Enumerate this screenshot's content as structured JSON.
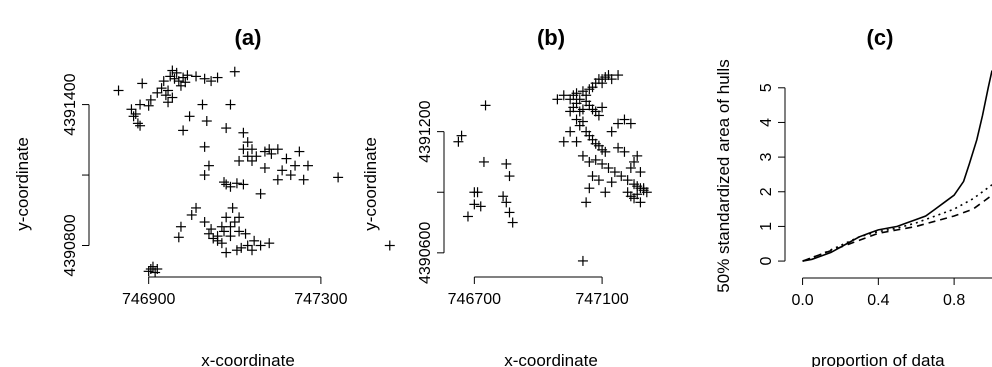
{
  "chart_data": [
    {
      "panel": "(a)",
      "type": "scatter",
      "title": "(a)",
      "xlabel": "x-coordinate",
      "ylabel": "y-coordinate",
      "xlim": [
        746780,
        747500
      ],
      "ylim": [
        4390700,
        4391560
      ],
      "xticks": [
        746900,
        747300
      ],
      "xtick_labels": [
        "746900",
        "747300"
      ],
      "yticks": [
        4390800,
        4391100,
        4391400
      ],
      "ytick_labels": [
        "4390800",
        "",
        "4391400"
      ],
      "grid": false,
      "marker": "+",
      "points": [
        [
          746830,
          4391460
        ],
        [
          746860,
          4391380
        ],
        [
          746865,
          4391350
        ],
        [
          746870,
          4391360
        ],
        [
          746875,
          4391320
        ],
        [
          746880,
          4391400
        ],
        [
          746880,
          4391310
        ],
        [
          746885,
          4391490
        ],
        [
          746900,
          4391395
        ],
        [
          746905,
          4391420
        ],
        [
          746920,
          4391450
        ],
        [
          746930,
          4391470
        ],
        [
          746935,
          4391500
        ],
        [
          746940,
          4391440
        ],
        [
          746945,
          4391460
        ],
        [
          746950,
          4391520
        ],
        [
          746955,
          4391545
        ],
        [
          746960,
          4391510
        ],
        [
          746965,
          4391535
        ],
        [
          746970,
          4391500
        ],
        [
          746975,
          4391480
        ],
        [
          746980,
          4391515
        ],
        [
          746985,
          4391495
        ],
        [
          746990,
          4391525
        ],
        [
          746945,
          4391410
        ],
        [
          746955,
          4391430
        ],
        [
          747010,
          4391520
        ],
        [
          747030,
          4391510
        ],
        [
          747045,
          4391500
        ],
        [
          747060,
          4391515
        ],
        [
          747100,
          4391540
        ],
        [
          747025,
          4391400
        ],
        [
          747035,
          4391330
        ],
        [
          746995,
          4391350
        ],
        [
          746980,
          4391290
        ],
        [
          747030,
          4391220
        ],
        [
          747080,
          4391300
        ],
        [
          747090,
          4391400
        ],
        [
          747120,
          4391280
        ],
        [
          747130,
          4391240
        ],
        [
          747120,
          4391210
        ],
        [
          747150,
          4391180
        ],
        [
          747140,
          4391160
        ],
        [
          747170,
          4391200
        ],
        [
          747180,
          4391210
        ],
        [
          747185,
          4391190
        ],
        [
          747200,
          4391210
        ],
        [
          747210,
          4391120
        ],
        [
          747220,
          4391170
        ],
        [
          747240,
          4391140
        ],
        [
          747250,
          4391200
        ],
        [
          747270,
          4391140
        ],
        [
          747230,
          4391100
        ],
        [
          747260,
          4391080
        ],
        [
          747200,
          4391080
        ],
        [
          747170,
          4391130
        ],
        [
          747160,
          4391020
        ],
        [
          747130,
          4391180
        ],
        [
          747140,
          4391210
        ],
        [
          747110,
          4391160
        ],
        [
          747075,
          4391070
        ],
        [
          747080,
          4391060
        ],
        [
          747090,
          4391050
        ],
        [
          747105,
          4391065
        ],
        [
          747120,
          4391060
        ],
        [
          747040,
          4391140
        ],
        [
          747030,
          4391100
        ],
        [
          747340,
          4391090
        ],
        [
          746975,
          4390880
        ],
        [
          746970,
          4390835
        ],
        [
          747000,
          4390930
        ],
        [
          747010,
          4390960
        ],
        [
          747030,
          4390900
        ],
        [
          747045,
          4390870
        ],
        [
          747060,
          4390840
        ],
        [
          747075,
          4390860
        ],
        [
          747090,
          4390880
        ],
        [
          747100,
          4390900
        ],
        [
          747110,
          4390920
        ],
        [
          747095,
          4390960
        ],
        [
          747080,
          4390920
        ],
        [
          747070,
          4390880
        ],
        [
          747050,
          4390830
        ],
        [
          747060,
          4390820
        ],
        [
          747070,
          4390810
        ],
        [
          747090,
          4390840
        ],
        [
          747110,
          4390860
        ],
        [
          747130,
          4390800
        ],
        [
          747115,
          4390790
        ],
        [
          747105,
          4390780
        ],
        [
          747080,
          4390770
        ],
        [
          747040,
          4390850
        ],
        [
          747125,
          4390850
        ],
        [
          747145,
          4390820
        ],
        [
          747160,
          4390800
        ],
        [
          747180,
          4390810
        ],
        [
          747140,
          4390780
        ],
        [
          746900,
          4390690
        ],
        [
          746905,
          4390700
        ],
        [
          746910,
          4390710
        ],
        [
          746915,
          4390685
        ],
        [
          746920,
          4390700
        ],
        [
          747460,
          4390800
        ]
      ]
    },
    {
      "panel": "(b)",
      "type": "scatter",
      "title": "(b)",
      "xlabel": "x-coordinate",
      "ylabel": "y-coordinate",
      "xlim": [
        746630,
        747250
      ],
      "ylim": [
        4390520,
        4391520
      ],
      "xticks": [
        746700,
        747100
      ],
      "xtick_labels": [
        "746700",
        "747100"
      ],
      "yticks": [
        4390600,
        4390900,
        4391200
      ],
      "ytick_labels": [
        "4390600",
        "",
        "4391200"
      ],
      "grid": false,
      "marker": "+",
      "points": [
        [
          746650,
          4391150
        ],
        [
          746660,
          4391180
        ],
        [
          746700,
          4390900
        ],
        [
          746710,
          4390900
        ],
        [
          746720,
          4390830
        ],
        [
          746700,
          4390840
        ],
        [
          746730,
          4391050
        ],
        [
          746735,
          4391330
        ],
        [
          746800,
          4391040
        ],
        [
          746810,
          4390980
        ],
        [
          746790,
          4390880
        ],
        [
          746800,
          4390850
        ],
        [
          746810,
          4390800
        ],
        [
          746680,
          4390780
        ],
        [
          746820,
          4390750
        ],
        [
          746960,
          4391360
        ],
        [
          746980,
          4391380
        ],
        [
          747000,
          4391360
        ],
        [
          747010,
          4391380
        ],
        [
          747020,
          4391390
        ],
        [
          747030,
          4391360
        ],
        [
          747040,
          4391400
        ],
        [
          747050,
          4391380
        ],
        [
          747060,
          4391410
        ],
        [
          747070,
          4391420
        ],
        [
          747080,
          4391440
        ],
        [
          747090,
          4391460
        ],
        [
          747100,
          4391440
        ],
        [
          747110,
          4391470
        ],
        [
          747120,
          4391480
        ],
        [
          747130,
          4391460
        ],
        [
          747000,
          4391300
        ],
        [
          747010,
          4391320
        ],
        [
          747020,
          4391340
        ],
        [
          747030,
          4391300
        ],
        [
          747040,
          4391310
        ],
        [
          747050,
          4391350
        ],
        [
          747060,
          4391330
        ],
        [
          747070,
          4391310
        ],
        [
          747080,
          4391300
        ],
        [
          747090,
          4391280
        ],
        [
          747100,
          4391320
        ],
        [
          747020,
          4391260
        ],
        [
          747030,
          4391230
        ],
        [
          747040,
          4391250
        ],
        [
          747050,
          4391200
        ],
        [
          747060,
          4391180
        ],
        [
          747070,
          4391160
        ],
        [
          747080,
          4391140
        ],
        [
          747090,
          4391130
        ],
        [
          747100,
          4391110
        ],
        [
          747110,
          4391100
        ],
        [
          746980,
          4391150
        ],
        [
          747000,
          4391200
        ],
        [
          747020,
          4391150
        ],
        [
          747040,
          4391080
        ],
        [
          747060,
          4391050
        ],
        [
          747080,
          4391060
        ],
        [
          747100,
          4391040
        ],
        [
          747120,
          4391020
        ],
        [
          747140,
          4391000
        ],
        [
          747160,
          4390980
        ],
        [
          747180,
          4390960
        ],
        [
          747200,
          4390940
        ],
        [
          747220,
          4390920
        ],
        [
          747230,
          4390910
        ],
        [
          747210,
          4390930
        ],
        [
          747190,
          4391020
        ],
        [
          747200,
          4391050
        ],
        [
          747170,
          4391100
        ],
        [
          747150,
          4391120
        ],
        [
          747130,
          4391200
        ],
        [
          747150,
          4391240
        ],
        [
          747170,
          4391260
        ],
        [
          747190,
          4391240
        ],
        [
          747210,
          4391080
        ],
        [
          747220,
          4391000
        ],
        [
          747130,
          4390950
        ],
        [
          747110,
          4390900
        ],
        [
          747090,
          4390960
        ],
        [
          747070,
          4390980
        ],
        [
          747060,
          4390920
        ],
        [
          747050,
          4390850
        ],
        [
          747100,
          4391460
        ],
        [
          747150,
          4391480
        ],
        [
          747180,
          4390900
        ],
        [
          747190,
          4390880
        ],
        [
          747200,
          4390870
        ],
        [
          747210,
          4390890
        ],
        [
          747220,
          4390850
        ],
        [
          747240,
          4390900
        ],
        [
          747230,
          4390920
        ],
        [
          747040,
          4390560
        ]
      ]
    },
    {
      "panel": "(c)",
      "type": "line",
      "title": "(c)",
      "xlabel": "proportion of data",
      "ylabel": "50% standardized area of hulls",
      "xlim": [
        -0.04,
        1.0
      ],
      "ylim": [
        -0.2,
        5.6
      ],
      "xticks": [
        0.0,
        0.4,
        0.8
      ],
      "xtick_labels": [
        "0.0",
        "0.4",
        "0.8"
      ],
      "yticks": [
        0,
        1,
        2,
        3,
        4,
        5
      ],
      "ytick_labels": [
        "0",
        "1",
        "2",
        "3",
        "4",
        "5"
      ],
      "grid": false,
      "series": [
        {
          "style": "solid",
          "x": [
            0.0,
            0.05,
            0.1,
            0.15,
            0.2,
            0.25,
            0.3,
            0.35,
            0.4,
            0.45,
            0.5,
            0.55,
            0.6,
            0.65,
            0.7,
            0.75,
            0.8,
            0.85,
            0.88,
            0.92,
            0.95,
            0.98,
            1.0
          ],
          "values": [
            0.0,
            0.05,
            0.15,
            0.25,
            0.4,
            0.55,
            0.7,
            0.8,
            0.9,
            0.95,
            1.0,
            1.1,
            1.2,
            1.3,
            1.5,
            1.7,
            1.9,
            2.3,
            2.8,
            3.5,
            4.2,
            5.0,
            5.5
          ]
        },
        {
          "style": "dotted",
          "x": [
            0.0,
            0.1,
            0.2,
            0.3,
            0.4,
            0.5,
            0.6,
            0.7,
            0.8,
            0.9,
            0.95,
            1.0
          ],
          "values": [
            0.0,
            0.2,
            0.45,
            0.7,
            0.85,
            0.95,
            1.1,
            1.3,
            1.5,
            1.8,
            2.0,
            2.2
          ]
        },
        {
          "style": "dashed",
          "x": [
            0.0,
            0.1,
            0.2,
            0.3,
            0.4,
            0.5,
            0.6,
            0.7,
            0.8,
            0.9,
            0.95,
            1.0
          ],
          "values": [
            0.0,
            0.2,
            0.4,
            0.6,
            0.8,
            0.9,
            1.0,
            1.15,
            1.3,
            1.5,
            1.7,
            1.9
          ]
        }
      ]
    }
  ]
}
